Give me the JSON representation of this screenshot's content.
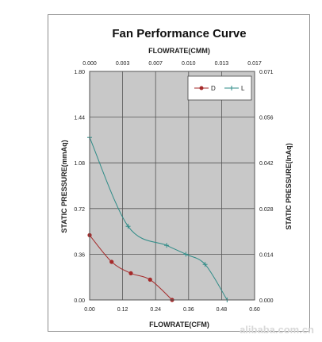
{
  "chart_data": {
    "type": "line",
    "title": "Fan Performance Curve",
    "xlabel": "FLOWRATE(CFM)",
    "xlabel_top": "FLOWRATE(CMM)",
    "ylabel": "STATIC PRESSURE(mmAq)",
    "ylabel_right": "STATIC PRESSURE(InAq)",
    "xlim": [
      0,
      0.6
    ],
    "ylim": [
      0,
      1.8
    ],
    "x_ticks": [
      "0.00",
      "0.12",
      "0.24",
      "0.36",
      "0.48",
      "0.60"
    ],
    "y_ticks": [
      "0.00",
      "0.36",
      "0.72",
      "1.08",
      "1.44",
      "1.80"
    ],
    "x_top_ticks": [
      "0.000",
      "0.003",
      "0.007",
      "0.010",
      "0.013",
      "0.017"
    ],
    "y_right_ticks": [
      "0.000",
      "0.014",
      "0.028",
      "0.042",
      "0.056",
      "0.071"
    ],
    "grid": true,
    "legend_position": "top-right",
    "series": [
      {
        "name": "D",
        "color": "#a52a2a",
        "marker": "circle",
        "points": [
          [
            0.0,
            0.51
          ],
          [
            0.08,
            0.3
          ],
          [
            0.15,
            0.21
          ],
          [
            0.22,
            0.16
          ],
          [
            0.3,
            0.0
          ]
        ]
      },
      {
        "name": "L",
        "color": "#2e8b87",
        "marker": "plus",
        "points": [
          [
            0.0,
            1.28
          ],
          [
            0.14,
            0.58
          ],
          [
            0.28,
            0.43
          ],
          [
            0.35,
            0.36
          ],
          [
            0.42,
            0.28
          ],
          [
            0.5,
            0.0
          ]
        ]
      }
    ]
  },
  "watermark": "alibaba.com.cn"
}
